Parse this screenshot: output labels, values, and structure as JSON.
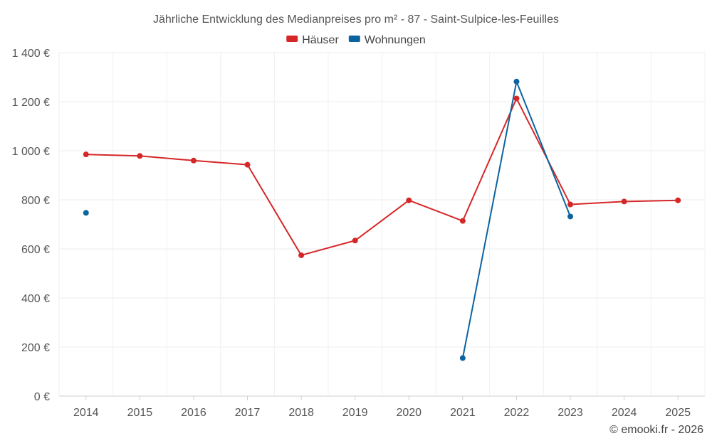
{
  "chart_data": {
    "type": "line",
    "title": "Jährliche Entwicklung des Medianpreises pro m² - 87 - Saint-Sulpice-les-Feuilles",
    "categories": [
      "2014",
      "2015",
      "2016",
      "2017",
      "2018",
      "2019",
      "2020",
      "2021",
      "2022",
      "2023",
      "2024",
      "2025"
    ],
    "ylim": [
      0,
      1400
    ],
    "yticks": [
      0,
      200,
      400,
      600,
      800,
      1000,
      1200,
      1400
    ],
    "ytick_labels": [
      "0 €",
      "200 €",
      "400 €",
      "600 €",
      "800 €",
      "1 000 €",
      "1 200 €",
      "1 400 €"
    ],
    "xlabel": "",
    "ylabel": "",
    "grid": true,
    "legend_position": "top-center",
    "series": [
      {
        "name": "Häuser",
        "color": "#d62728",
        "values": [
          985,
          979,
          960,
          943,
          574,
          634,
          798,
          714,
          1213,
          781,
          793,
          798
        ]
      },
      {
        "name": "Wohnungen",
        "color": "#0b64a0",
        "values": [
          747,
          null,
          null,
          null,
          null,
          null,
          null,
          155,
          1282,
          732,
          null,
          null
        ]
      }
    ],
    "credit": "© emooki.fr - 2026"
  }
}
